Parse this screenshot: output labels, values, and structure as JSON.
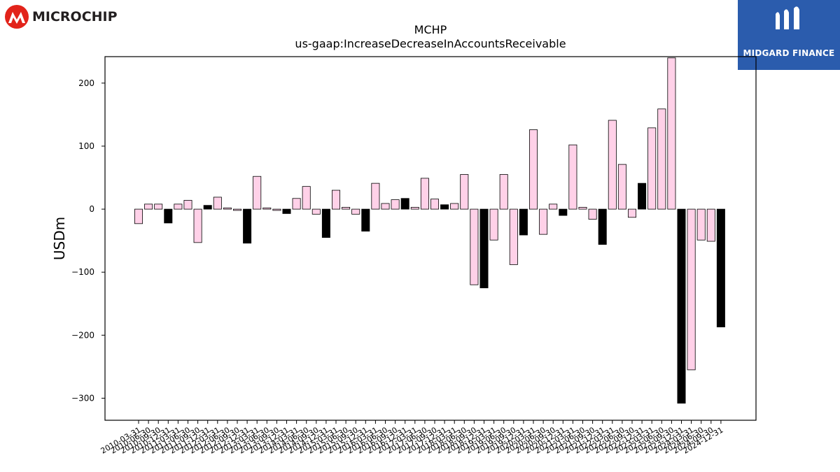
{
  "company_logo": {
    "name": "MICROCHIP",
    "accent": "#e2231a"
  },
  "partner_badge": {
    "name": "MIDGARD FINANCE",
    "background": "#2b5cad"
  },
  "chart_data": {
    "type": "bar",
    "title": "MCHP",
    "subtitle": "us-gaap:IncreaseDecreaseInAccountsReceivable",
    "ylabel": "USDm",
    "xlabel": "",
    "ylim": [
      -335,
      242
    ],
    "yticks": [
      200,
      100,
      0,
      -100,
      -200,
      -300
    ],
    "ytick_labels": [
      "200",
      "100",
      "0",
      "−100",
      "−200",
      "−300"
    ],
    "grid": false,
    "colors": {
      "pink": "#ffd1e8",
      "black": "#000000"
    },
    "categories": [
      "2010-03-31",
      "2010-06-30",
      "2010-09-30",
      "2010-12-31",
      "2011-03-31",
      "2011-06-30",
      "2011-09-30",
      "2011-12-31",
      "2012-03-31",
      "2012-06-30",
      "2012-09-30",
      "2012-12-31",
      "2013-03-31",
      "2013-06-30",
      "2013-09-30",
      "2013-12-31",
      "2014-03-31",
      "2014-06-30",
      "2014-09-30",
      "2014-12-31",
      "2015-03-31",
      "2015-06-30",
      "2015-09-30",
      "2015-12-31",
      "2016-03-31",
      "2016-06-30",
      "2016-09-30",
      "2016-12-31",
      "2017-03-31",
      "2017-06-30",
      "2017-09-30",
      "2017-12-31",
      "2018-03-31",
      "2018-06-30",
      "2018-09-30",
      "2018-12-31",
      "2019-03-31",
      "2019-06-30",
      "2019-09-30",
      "2019-12-31",
      "2020-03-31",
      "2020-06-30",
      "2020-09-30",
      "2020-12-31",
      "2021-03-31",
      "2021-06-30",
      "2021-09-30",
      "2021-12-31",
      "2022-03-31",
      "2022-06-30",
      "2022-09-30",
      "2022-12-31",
      "2023-03-31",
      "2023-06-30",
      "2023-09-30",
      "2023-12-31",
      "2024-03-31",
      "2024-06-30",
      "2024-09-30",
      "2024-12-31"
    ],
    "values": [
      -23,
      8,
      8,
      -22,
      8,
      14,
      -53,
      6,
      19,
      2,
      -2,
      -54,
      52,
      2,
      -2,
      -7,
      17,
      36,
      -8,
      -45,
      30,
      3,
      -8,
      -35,
      41,
      9,
      15,
      17,
      3,
      49,
      16,
      7,
      9,
      55,
      -120,
      -125,
      -49,
      55,
      -88,
      -41,
      126,
      -40,
      8,
      -10,
      102,
      3,
      -16,
      -56,
      141,
      71,
      -13,
      41,
      129,
      159,
      240,
      -308,
      -255,
      -49,
      -51,
      -187
    ],
    "bar_colors": [
      "pink",
      "pink",
      "pink",
      "black",
      "pink",
      "pink",
      "pink",
      "black",
      "pink",
      "pink",
      "pink",
      "black",
      "pink",
      "pink",
      "pink",
      "black",
      "pink",
      "pink",
      "pink",
      "black",
      "pink",
      "pink",
      "pink",
      "black",
      "pink",
      "pink",
      "pink",
      "black",
      "pink",
      "pink",
      "pink",
      "black",
      "pink",
      "pink",
      "pink",
      "black",
      "pink",
      "pink",
      "pink",
      "black",
      "pink",
      "pink",
      "pink",
      "black",
      "pink",
      "pink",
      "pink",
      "black",
      "pink",
      "pink",
      "pink",
      "black",
      "pink",
      "pink",
      "pink",
      "black",
      "pink",
      "pink",
      "pink",
      "black"
    ]
  }
}
